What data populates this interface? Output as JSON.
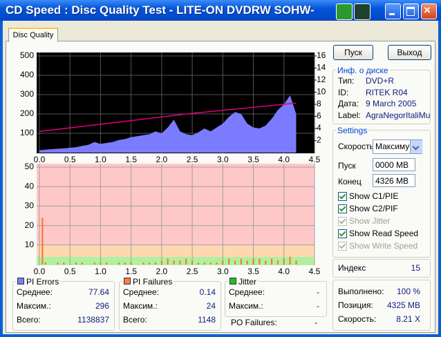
{
  "window": {
    "title": "CD Speed : Disc Quality Test - LITE-ON DVDRW SOHW-"
  },
  "tab": "Disc Quality",
  "buttons": [
    "Пуск",
    "Выход"
  ],
  "disc_info": {
    "title": "Инф. о диске",
    "rows": [
      [
        "Тип:",
        "DVD+R"
      ],
      [
        "ID:",
        "RITEK R04"
      ],
      [
        "Дата:",
        "9 March 2005"
      ],
      [
        "Label:",
        "AgraNegorItaliMu"
      ]
    ]
  },
  "settings": {
    "title": "Settings",
    "speed_label": "Скорость",
    "speed_value": "Максиму",
    "start_label": "Пуск",
    "start_value": "0000 MB",
    "end_label": "Конец",
    "end_value": "4326 MB",
    "checkboxes": [
      {
        "label": "Show C1/PIE",
        "checked": true,
        "enabled": true
      },
      {
        "label": "Show C2/PIF",
        "checked": true,
        "enabled": true
      },
      {
        "label": "Show Jitter",
        "checked": true,
        "enabled": false
      },
      {
        "label": "Show Read Speed",
        "checked": true,
        "enabled": true
      },
      {
        "label": "Show Write Speed",
        "checked": true,
        "enabled": false
      }
    ]
  },
  "index": {
    "label": "Индекс",
    "value": 15
  },
  "progress": [
    [
      "Выполнено:",
      "100 %"
    ],
    [
      "Позиция:",
      "4325 MB"
    ],
    [
      "Скорость:",
      "8.21 X"
    ]
  ],
  "stats": [
    {
      "title": "PI Errors",
      "color": "#7b7bff",
      "rows": [
        [
          "Среднее:",
          "77.64"
        ],
        [
          "Максим.:",
          "296"
        ],
        [
          "Всего:",
          "1138837"
        ]
      ]
    },
    {
      "title": "PI Failures",
      "color": "#ff8040",
      "rows": [
        [
          "Среднее:",
          "0.14"
        ],
        [
          "Максим.:",
          "24"
        ],
        [
          "Всего:",
          "1148"
        ]
      ]
    },
    {
      "title": "Jitter",
      "color": "#20c020",
      "rows": [
        [
          "Среднее:",
          "-"
        ],
        [
          "Максим.:",
          "-"
        ]
      ]
    }
  ],
  "po_failures": [
    "PO Failures:",
    "-"
  ],
  "chart_data": [
    {
      "type": "area",
      "background": "#000000",
      "grid": true,
      "grid_color": "#555555",
      "xlim": [
        0,
        4.5
      ],
      "xticks": [
        {
          "value": 0,
          "label": "0.0"
        },
        {
          "value": 0.5,
          "label": "0.5"
        },
        {
          "value": 1,
          "label": "1.0"
        },
        {
          "value": 1.5,
          "label": "1.5"
        },
        {
          "value": 2,
          "label": "2.0"
        },
        {
          "value": 2.5,
          "label": "2.5"
        },
        {
          "value": 3,
          "label": "3.0"
        },
        {
          "value": 3.5,
          "label": "3.5"
        },
        {
          "value": 4,
          "label": "4.0"
        },
        {
          "value": 4.5,
          "label": "4.5"
        }
      ],
      "ylim": [
        0,
        500
      ],
      "yticks": [
        100,
        200,
        300,
        400,
        500
      ],
      "y2lim": [
        0,
        16
      ],
      "y2ticks": [
        2,
        4,
        6,
        8,
        10,
        12,
        14,
        16
      ],
      "series": [
        {
          "type": "area",
          "color": "#7b7bff",
          "x": [
            0,
            0.1,
            0.2,
            0.3,
            0.4,
            0.5,
            0.6,
            0.7,
            0.8,
            0.9,
            1,
            1.1,
            1.2,
            1.3,
            1.4,
            1.5,
            1.6,
            1.7,
            1.8,
            1.9,
            2,
            2.1,
            2.2,
            2.3,
            2.4,
            2.5,
            2.6,
            2.7,
            2.8,
            2.9,
            3,
            3.1,
            3.2,
            3.3,
            3.4,
            3.5,
            3.6,
            3.7,
            3.8,
            3.9,
            4,
            4.1,
            4.2
          ],
          "values": [
            12,
            15,
            18,
            20,
            22,
            25,
            28,
            35,
            40,
            55,
            45,
            50,
            55,
            65,
            70,
            80,
            85,
            90,
            95,
            110,
            100,
            130,
            170,
            110,
            95,
            90,
            105,
            125,
            110,
            130,
            150,
            185,
            210,
            200,
            150,
            130,
            125,
            140,
            175,
            220,
            250,
            296,
            200
          ]
        },
        {
          "type": "line",
          "axis": "y2",
          "color": "#e0007a",
          "x": [
            0,
            0.5,
            1,
            1.5,
            2,
            2.5,
            3,
            3.5,
            4,
            4.2
          ],
          "values": [
            3.5,
            4.1,
            4.7,
            5.3,
            5.9,
            6.5,
            7,
            7.5,
            8,
            8.2
          ]
        }
      ]
    },
    {
      "type": "bar",
      "background": "#ffc8c8",
      "grid": true,
      "grid_color": "#a0a0a0",
      "xlim": [
        0,
        4.5
      ],
      "xticks": [
        {
          "value": 0,
          "label": "0.0"
        },
        {
          "value": 0.5,
          "label": "0.5"
        },
        {
          "value": 1,
          "label": "1.0"
        },
        {
          "value": 1.5,
          "label": "1.5"
        },
        {
          "value": 2,
          "label": "2.0"
        },
        {
          "value": 2.5,
          "label": "2.5"
        },
        {
          "value": 3,
          "label": "3.0"
        },
        {
          "value": 3.5,
          "label": "3.5"
        },
        {
          "value": 4,
          "label": "4.0"
        },
        {
          "value": 4.5,
          "label": "4.5"
        }
      ],
      "ylim": [
        0,
        50
      ],
      "yticks": [
        10,
        20,
        30,
        40,
        50
      ],
      "series": [
        {
          "type": "bar",
          "color": "#ff7020",
          "x": [
            0.05,
            0.1,
            0.2,
            0.3,
            0.4,
            0.5,
            0.6,
            0.7,
            0.8,
            0.9,
            1,
            1.1,
            1.2,
            1.3,
            1.4,
            1.5,
            1.6,
            1.7,
            1.8,
            1.9,
            2,
            2.1,
            2.2,
            2.3,
            2.4,
            2.5,
            2.6,
            2.7,
            2.8,
            2.9,
            3,
            3.1,
            3.2,
            3.3,
            3.4,
            3.5,
            3.6,
            3.7,
            3.8,
            3.9,
            4,
            4.1,
            4.2
          ],
          "values": [
            24,
            1,
            0,
            1,
            1,
            0,
            1,
            1,
            0,
            1,
            1,
            1,
            0,
            1,
            1,
            1,
            0,
            1,
            1,
            1,
            2,
            3,
            2,
            2,
            3,
            2,
            1,
            1,
            1,
            1,
            2,
            3,
            2,
            3,
            2,
            3,
            3,
            2,
            3,
            2,
            3,
            4,
            2
          ]
        }
      ]
    }
  ]
}
